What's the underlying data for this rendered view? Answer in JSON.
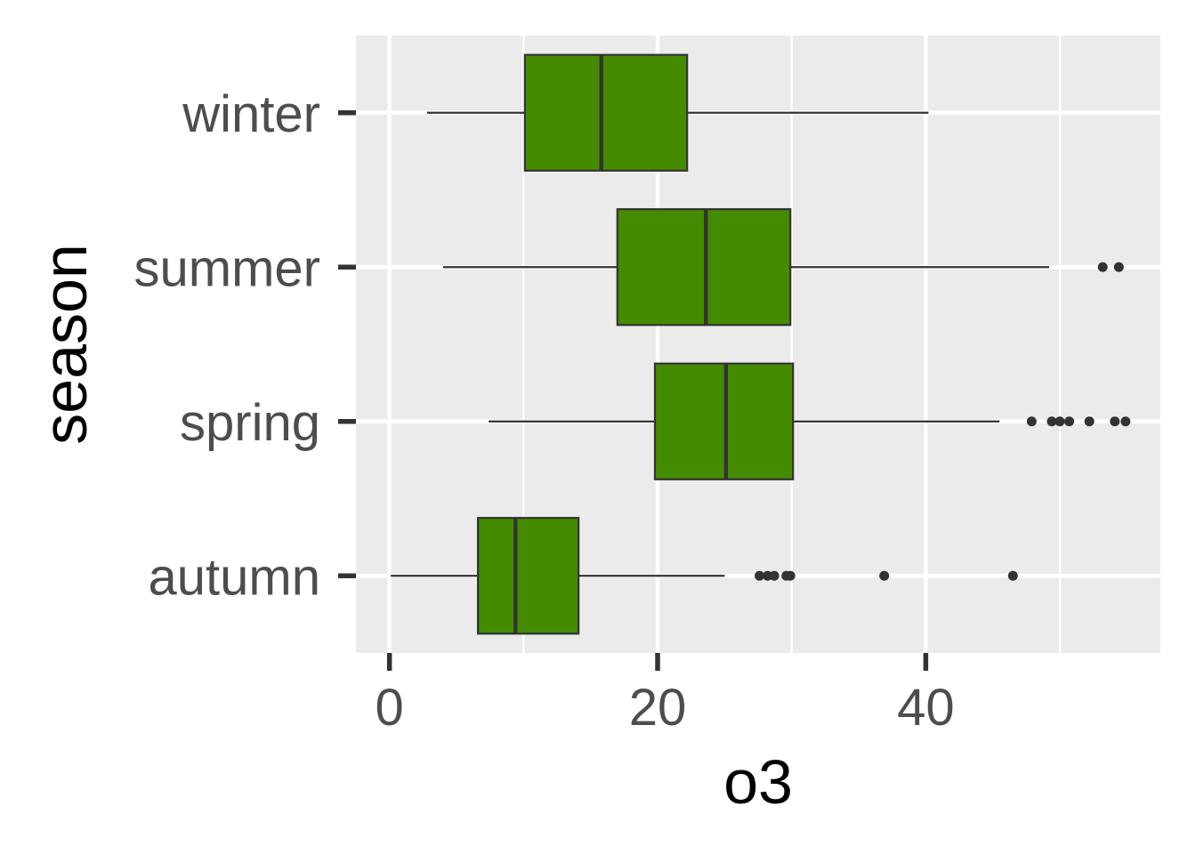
{
  "chart_data": {
    "type": "boxplot",
    "orientation": "horizontal",
    "xlabel": "o3",
    "ylabel": "season",
    "xlim": [
      -2.5,
      57.5
    ],
    "x_ticks": [
      0,
      20,
      40
    ],
    "x_minor_ticks": [
      10,
      30,
      50
    ],
    "grid": true,
    "colors": {
      "panel": "#ebebeb",
      "grid": "#ffffff",
      "box_fill": "#458b00",
      "box_line": "#333333",
      "tick_text": "#4d4d4d"
    },
    "categories": [
      "winter",
      "summer",
      "spring",
      "autumn"
    ],
    "boxes": [
      {
        "category": "winter",
        "whisker_low": 2.8,
        "q1": 10.1,
        "median": 15.8,
        "q3": 22.2,
        "whisker_high": 40.2,
        "outliers": []
      },
      {
        "category": "summer",
        "whisker_low": 4.0,
        "q1": 17.0,
        "median": 23.6,
        "q3": 29.9,
        "whisker_high": 49.2,
        "outliers": [
          53.2,
          54.4
        ]
      },
      {
        "category": "spring",
        "whisker_low": 7.4,
        "q1": 19.8,
        "median": 25.1,
        "q3": 30.1,
        "whisker_high": 45.5,
        "outliers": [
          47.9,
          49.4,
          50.0,
          50.7,
          52.2,
          54.1,
          54.9
        ]
      },
      {
        "category": "autumn",
        "whisker_low": 0.1,
        "q1": 6.6,
        "median": 9.4,
        "q3": 14.1,
        "whisker_high": 25.0,
        "outliers": [
          27.6,
          28.2,
          28.7,
          29.6,
          29.9,
          36.9,
          46.5
        ]
      }
    ]
  }
}
